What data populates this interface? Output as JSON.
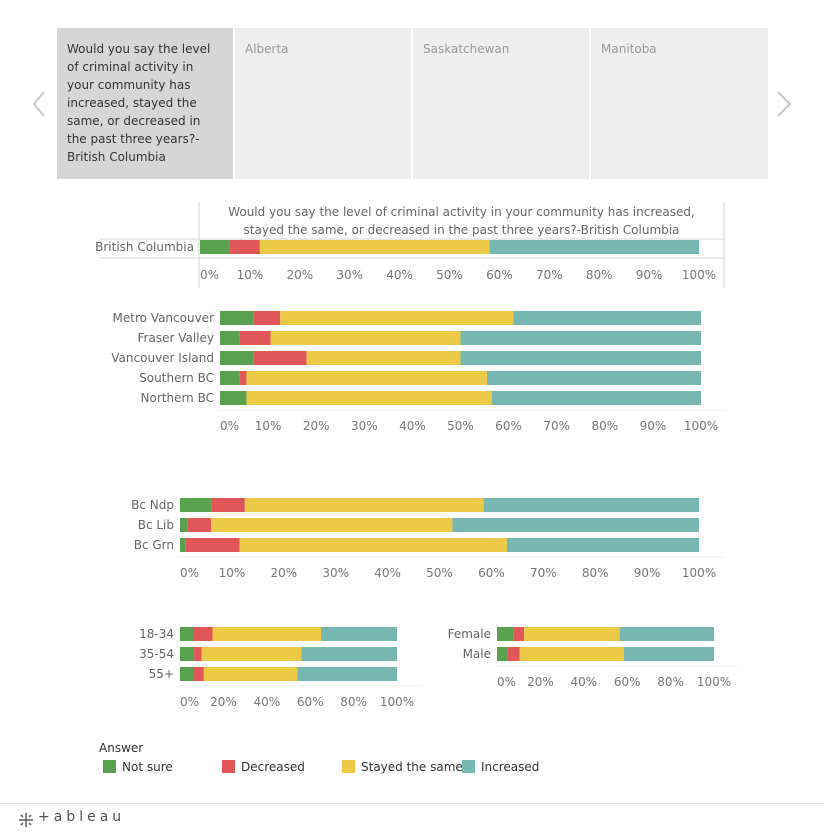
{
  "tabs": [
    {
      "label": "Would you say the level of criminal activity in your community has increased, stayed the same, or decreased in the past three years?-British Columbia",
      "active": true
    },
    {
      "label": "Alberta",
      "active": false
    },
    {
      "label": "Saskatchewan",
      "active": false
    },
    {
      "label": "Manitoba",
      "active": false
    }
  ],
  "legend": {
    "title": "Answer",
    "items": [
      {
        "label": "Not sure",
        "color": "#59a14f"
      },
      {
        "label": "Decreased",
        "color": "#e15759"
      },
      {
        "label": "Stayed the same",
        "color": "#edc948"
      },
      {
        "label": "Increased",
        "color": "#76b7b2"
      }
    ]
  },
  "brand": {
    "name": "+ableau"
  },
  "chart_data": [
    {
      "type": "bar",
      "stacked": true,
      "orientation": "horizontal",
      "title": "Would you say the level of criminal activity in your community has increased, stayed the same, or decreased in the past three years?-British Columbia",
      "categories": [
        "British Columbia"
      ],
      "series": [
        {
          "name": "Not sure",
          "values": [
            6
          ]
        },
        {
          "name": "Decreased",
          "values": [
            6
          ]
        },
        {
          "name": "Stayed the same",
          "values": [
            46
          ]
        },
        {
          "name": "Increased",
          "values": [
            42
          ]
        }
      ],
      "ticks": [
        "0%",
        "10%",
        "20%",
        "30%",
        "40%",
        "50%",
        "60%",
        "70%",
        "80%",
        "90%",
        "100%"
      ],
      "xlim": [
        0,
        100
      ]
    },
    {
      "type": "bar",
      "stacked": true,
      "orientation": "horizontal",
      "categories": [
        "Metro Vancouver",
        "Fraser Valley",
        "Vancouver Island",
        "Southern BC",
        "Northern BC"
      ],
      "series": [
        {
          "name": "Not sure",
          "values": [
            7,
            4,
            7,
            4,
            5.5
          ]
        },
        {
          "name": "Decreased",
          "values": [
            5.5,
            6.5,
            11,
            1.5,
            0
          ]
        },
        {
          "name": "Stayed the same",
          "values": [
            48.5,
            39.5,
            32,
            50,
            51
          ]
        },
        {
          "name": "Increased",
          "values": [
            39,
            50,
            50,
            44.5,
            43.5
          ]
        }
      ],
      "ticks": [
        "0%",
        "10%",
        "20%",
        "30%",
        "40%",
        "50%",
        "60%",
        "70%",
        "80%",
        "90%",
        "100%"
      ],
      "xlim": [
        0,
        100
      ]
    },
    {
      "type": "bar",
      "stacked": true,
      "orientation": "horizontal",
      "categories": [
        "Bc Ndp",
        "Bc Lib",
        "Bc Grn"
      ],
      "series": [
        {
          "name": "Not sure",
          "values": [
            6,
            1.5,
            1
          ]
        },
        {
          "name": "Decreased",
          "values": [
            6.5,
            4.5,
            10.5
          ]
        },
        {
          "name": "Stayed the same",
          "values": [
            46,
            46.5,
            51.5
          ]
        },
        {
          "name": "Increased",
          "values": [
            41.5,
            47.5,
            37
          ]
        }
      ],
      "ticks": [
        "0%",
        "10%",
        "20%",
        "30%",
        "40%",
        "50%",
        "60%",
        "70%",
        "80%",
        "90%",
        "100%"
      ],
      "xlim": [
        0,
        100
      ]
    },
    {
      "type": "bar",
      "stacked": true,
      "orientation": "horizontal",
      "categories": [
        "18-34",
        "35-54",
        "55+"
      ],
      "series": [
        {
          "name": "Not sure",
          "values": [
            6,
            6.5,
            6
          ]
        },
        {
          "name": "Decreased",
          "values": [
            9,
            3.5,
            5
          ]
        },
        {
          "name": "Stayed the same",
          "values": [
            50,
            46,
            43
          ]
        },
        {
          "name": "Increased",
          "values": [
            35,
            44,
            46
          ]
        }
      ],
      "ticks": [
        "0%",
        "20%",
        "40%",
        "60%",
        "80%",
        "100%"
      ],
      "xlim": [
        0,
        100
      ]
    },
    {
      "type": "bar",
      "stacked": true,
      "orientation": "horizontal",
      "categories": [
        "Female",
        "Male"
      ],
      "series": [
        {
          "name": "Not sure",
          "values": [
            7.5,
            5
          ]
        },
        {
          "name": "Decreased",
          "values": [
            5,
            5.5
          ]
        },
        {
          "name": "Stayed the same",
          "values": [
            44,
            48
          ]
        },
        {
          "name": "Increased",
          "values": [
            43.5,
            41.5
          ]
        }
      ],
      "ticks": [
        "0%",
        "20%",
        "40%",
        "60%",
        "80%",
        "100%"
      ],
      "xlim": [
        0,
        100
      ]
    }
  ]
}
